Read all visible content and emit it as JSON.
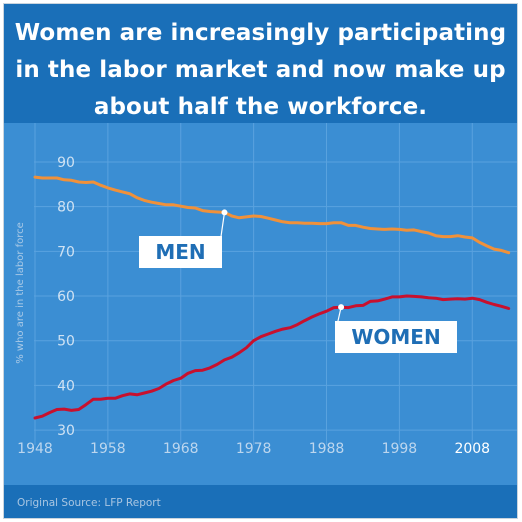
{
  "header": {
    "title_lines": [
      "Women are increasingly participating",
      "in the labor market and now make up",
      "about half the workforce."
    ]
  },
  "footer": {
    "source": "Original Source: LFP Report"
  },
  "colors": {
    "header_bg": "#1a6fb8",
    "plot_bg": "#3b8ed3",
    "men_line": "#f0913a",
    "women_line": "#c8102e",
    "label_text": "#1f6eb5"
  },
  "chart_data": {
    "type": "line",
    "title": "Women are increasingly participating in the labor market and now make up about half the workforce.",
    "xlabel": "",
    "ylabel": "% who are in the labor force",
    "xlim": [
      1948,
      2014
    ],
    "ylim": [
      28,
      92
    ],
    "x_ticks": [
      1948,
      1958,
      1968,
      1978,
      1988,
      1998,
      2008
    ],
    "y_ticks": [
      30,
      40,
      50,
      60,
      70,
      80,
      90
    ],
    "grid": true,
    "x": [
      1948,
      1949,
      1950,
      1951,
      1952,
      1953,
      1954,
      1955,
      1956,
      1957,
      1958,
      1959,
      1960,
      1961,
      1962,
      1963,
      1964,
      1965,
      1966,
      1967,
      1968,
      1969,
      1970,
      1971,
      1972,
      1973,
      1974,
      1975,
      1976,
      1977,
      1978,
      1979,
      1980,
      1981,
      1982,
      1983,
      1984,
      1985,
      1986,
      1987,
      1988,
      1989,
      1990,
      1991,
      1992,
      1993,
      1994,
      1995,
      1996,
      1997,
      1998,
      1999,
      2000,
      2001,
      2002,
      2003,
      2004,
      2005,
      2006,
      2007,
      2008,
      2009,
      2010,
      2011,
      2012,
      2013
    ],
    "series": [
      {
        "name": "MEN",
        "color": "#f0913a",
        "values": [
          86.6,
          86.4,
          86.4,
          86.4,
          86.0,
          85.9,
          85.5,
          85.4,
          85.5,
          84.8,
          84.2,
          83.7,
          83.3,
          82.9,
          82.0,
          81.4,
          81.0,
          80.7,
          80.4,
          80.4,
          80.1,
          79.8,
          79.7,
          79.1,
          78.9,
          78.8,
          78.7,
          77.9,
          77.5,
          77.7,
          77.9,
          77.8,
          77.4,
          77.0,
          76.6,
          76.4,
          76.4,
          76.3,
          76.3,
          76.2,
          76.2,
          76.4,
          76.4,
          75.8,
          75.8,
          75.4,
          75.1,
          75.0,
          74.9,
          75.0,
          74.9,
          74.7,
          74.8,
          74.4,
          74.1,
          73.5,
          73.3,
          73.3,
          73.5,
          73.2,
          73.0,
          72.0,
          71.2,
          70.5,
          70.2,
          69.7
        ]
      },
      {
        "name": "WOMEN",
        "color": "#c8102e",
        "values": [
          32.7,
          33.1,
          33.9,
          34.6,
          34.7,
          34.4,
          34.6,
          35.7,
          36.9,
          36.9,
          37.1,
          37.1,
          37.7,
          38.1,
          37.9,
          38.3,
          38.7,
          39.3,
          40.3,
          41.1,
          41.6,
          42.7,
          43.3,
          43.4,
          43.9,
          44.7,
          45.7,
          46.3,
          47.3,
          48.4,
          50.0,
          50.9,
          51.5,
          52.1,
          52.6,
          52.9,
          53.6,
          54.5,
          55.3,
          56.0,
          56.6,
          57.4,
          57.5,
          57.4,
          57.8,
          57.9,
          58.8,
          58.9,
          59.3,
          59.8,
          59.8,
          60.0,
          59.9,
          59.8,
          59.6,
          59.5,
          59.2,
          59.3,
          59.4,
          59.3,
          59.5,
          59.2,
          58.6,
          58.1,
          57.7,
          57.2
        ]
      }
    ],
    "annotations": [
      {
        "text": "MEN",
        "series": "MEN",
        "x": 1974
      },
      {
        "text": "WOMEN",
        "series": "WOMEN",
        "x": 1990
      }
    ]
  }
}
